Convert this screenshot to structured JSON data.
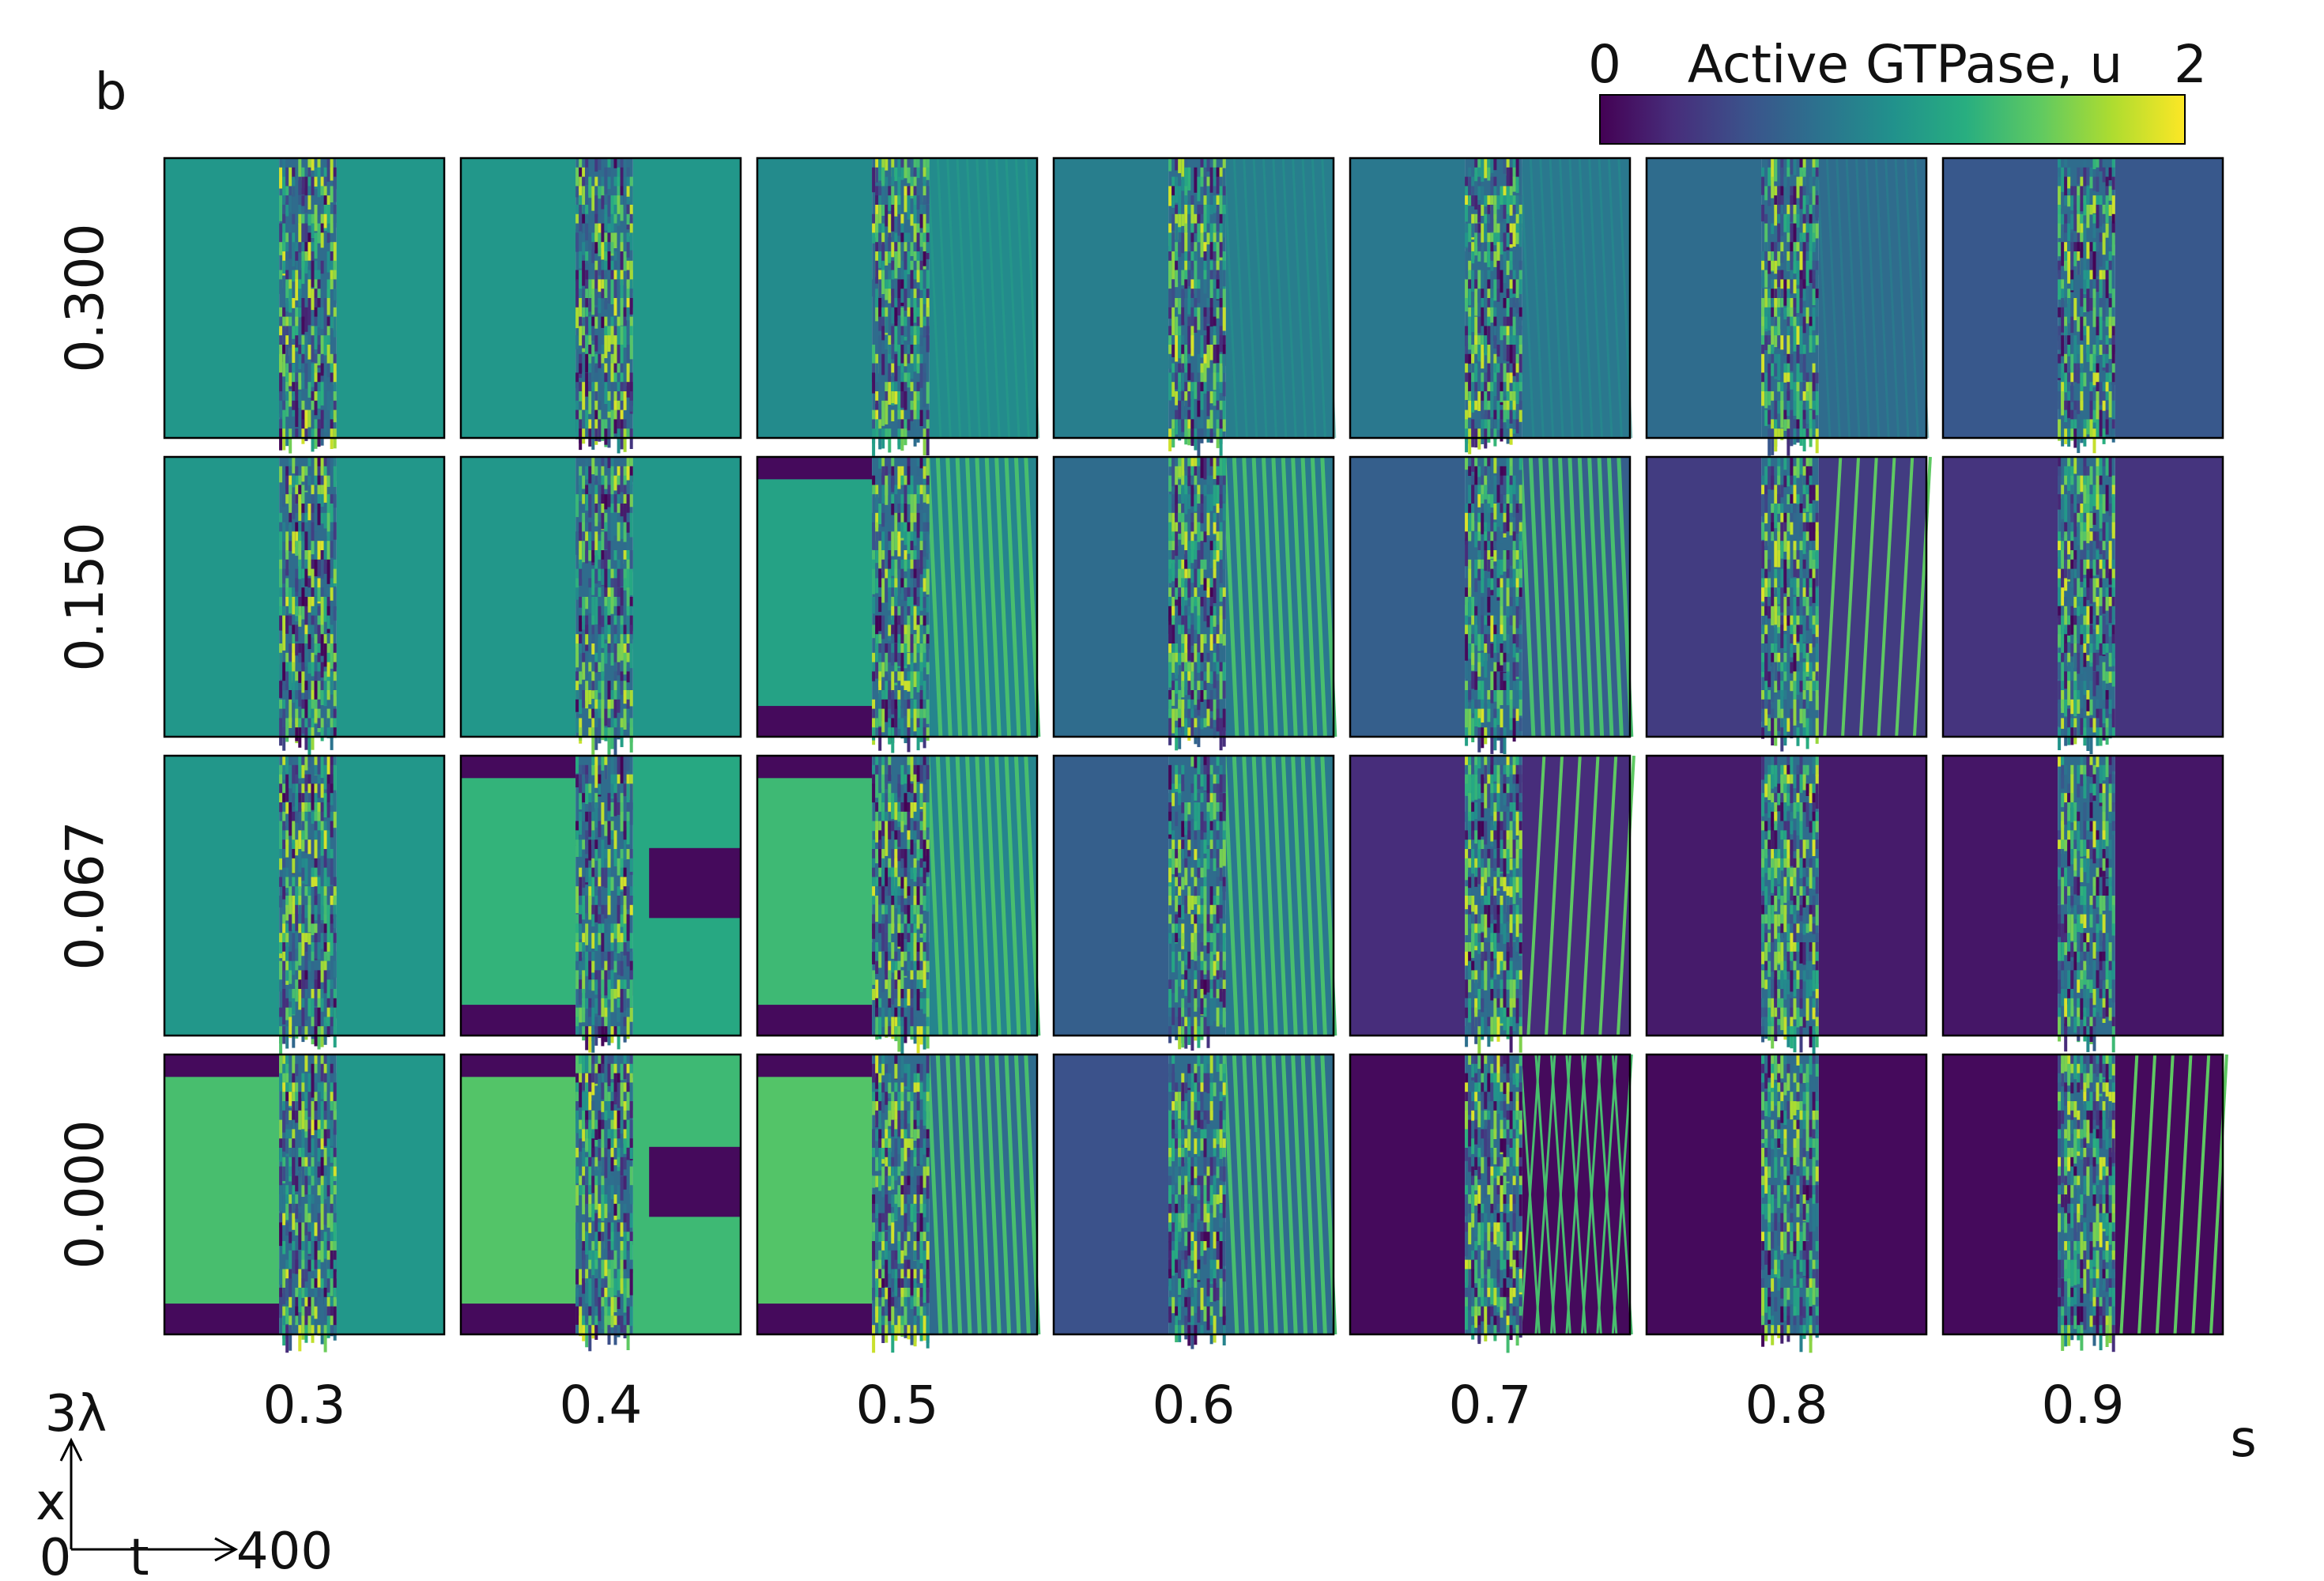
{
  "chart_data": {
    "type": "heatmap",
    "panel_label": "b",
    "colorbar": {
      "title": "Active GTPase, u",
      "min_label": "0",
      "max_label": "2",
      "range": [
        0,
        2
      ],
      "colormap": "viridis"
    },
    "row_axis_label": "b",
    "row_values": [
      "0.300",
      "0.150",
      "0.067",
      "0.000"
    ],
    "col_axis_label": "s",
    "col_values": [
      "0.3",
      "0.4",
      "0.5",
      "0.6",
      "0.7",
      "0.8",
      "0.9"
    ],
    "axes_key": {
      "x_axis_label": "t",
      "x_max_label": "400",
      "y_axis_label": "x",
      "y_max_label": "3λ",
      "origin_label": "0"
    },
    "panels": [
      [
        {
          "left_level": 1.05,
          "left_bands": false,
          "right_level": 1.05,
          "right_pattern": "uniform"
        },
        {
          "left_level": 1.05,
          "left_bands": false,
          "right_level": 1.05,
          "right_pattern": "uniform"
        },
        {
          "left_level": 0.95,
          "left_bands": false,
          "right_level": 0.95,
          "right_pattern": "faint-waves"
        },
        {
          "left_level": 0.85,
          "left_bands": false,
          "right_level": 0.85,
          "right_pattern": "faint-waves"
        },
        {
          "left_level": 0.8,
          "left_bands": false,
          "right_level": 0.8,
          "right_pattern": "faint-waves"
        },
        {
          "left_level": 0.7,
          "left_bands": false,
          "right_level": 0.7,
          "right_pattern": "faint-waves"
        },
        {
          "left_level": 0.55,
          "left_bands": false,
          "right_level": 0.55,
          "right_pattern": "uniform"
        }
      ],
      [
        {
          "left_level": 1.05,
          "left_bands": false,
          "right_level": 1.05,
          "right_pattern": "uniform"
        },
        {
          "left_level": 1.05,
          "left_bands": false,
          "right_level": 1.05,
          "right_pattern": "uniform"
        },
        {
          "left_level": 1.15,
          "left_bands": true,
          "right_level": 0.9,
          "right_pattern": "waves"
        },
        {
          "left_level": 0.7,
          "left_bands": false,
          "right_level": 0.8,
          "right_pattern": "waves"
        },
        {
          "left_level": 0.6,
          "left_bands": false,
          "right_level": 0.6,
          "right_pattern": "waves"
        },
        {
          "left_level": 0.35,
          "left_bands": false,
          "right_level": 0.35,
          "right_pattern": "sparse-lines"
        },
        {
          "left_level": 0.3,
          "left_bands": false,
          "right_level": 0.3,
          "right_pattern": "uniform"
        }
      ],
      [
        {
          "left_level": 1.05,
          "left_bands": false,
          "right_level": 1.05,
          "right_pattern": "uniform"
        },
        {
          "left_level": 1.3,
          "left_bands": true,
          "right_level": 1.2,
          "right_pattern": "block"
        },
        {
          "left_level": 1.35,
          "left_bands": true,
          "right_level": 0.9,
          "right_pattern": "waves"
        },
        {
          "left_level": 0.6,
          "left_bands": false,
          "right_level": 0.8,
          "right_pattern": "waves"
        },
        {
          "left_level": 0.25,
          "left_bands": false,
          "right_level": 0.25,
          "right_pattern": "sparse-lines"
        },
        {
          "left_level": 0.15,
          "left_bands": false,
          "right_level": 0.15,
          "right_pattern": "uniform"
        },
        {
          "left_level": 0.12,
          "left_bands": false,
          "right_level": 0.12,
          "right_pattern": "uniform"
        }
      ],
      [
        {
          "left_level": 1.4,
          "left_bands": true,
          "right_level": 1.05,
          "right_pattern": "uniform"
        },
        {
          "left_level": 1.45,
          "left_bands": true,
          "right_level": 1.35,
          "right_pattern": "block"
        },
        {
          "left_level": 1.45,
          "left_bands": true,
          "right_level": 0.7,
          "right_pattern": "waves"
        },
        {
          "left_level": 0.5,
          "left_bands": false,
          "right_level": 0.7,
          "right_pattern": "waves"
        },
        {
          "left_level": 0.05,
          "left_bands": false,
          "right_level": 0.05,
          "right_pattern": "crossing-lines"
        },
        {
          "left_level": 0.05,
          "left_bands": false,
          "right_level": 0.05,
          "right_pattern": "uniform"
        },
        {
          "left_level": 0.05,
          "left_bands": false,
          "right_level": 0.05,
          "right_pattern": "sparse-lines"
        }
      ]
    ]
  }
}
